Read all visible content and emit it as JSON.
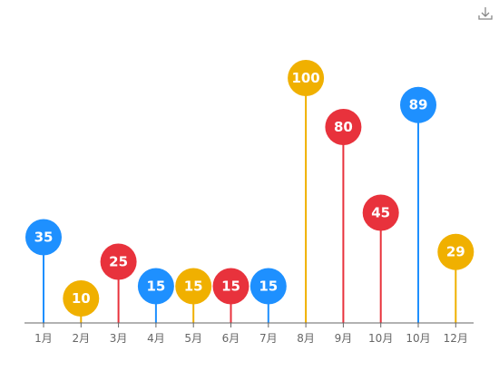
{
  "toolbar": {
    "download_icon": "download-icon"
  },
  "chart_data": {
    "type": "bar",
    "style": "lollipop",
    "title": "",
    "xlabel": "",
    "ylabel": "",
    "grid": false,
    "categories": [
      "1月",
      "2月",
      "3月",
      "4月",
      "5月",
      "6月",
      "7月",
      "8月",
      "9月",
      "10月",
      "10月",
      "12月"
    ],
    "values": [
      35,
      10,
      25,
      15,
      15,
      15,
      15,
      100,
      80,
      45,
      89,
      29
    ],
    "colors": [
      "#1e90ff",
      "#f0b000",
      "#e8323c",
      "#1e90ff",
      "#f0b000",
      "#e8323c",
      "#1e90ff",
      "#f0b000",
      "#e8323c",
      "#e8323c",
      "#1e90ff",
      "#f0b000"
    ],
    "data_labels": [
      "35",
      "10",
      "25",
      "15",
      "15",
      "15",
      "15",
      "100",
      "80",
      "45",
      "89",
      "29"
    ]
  }
}
